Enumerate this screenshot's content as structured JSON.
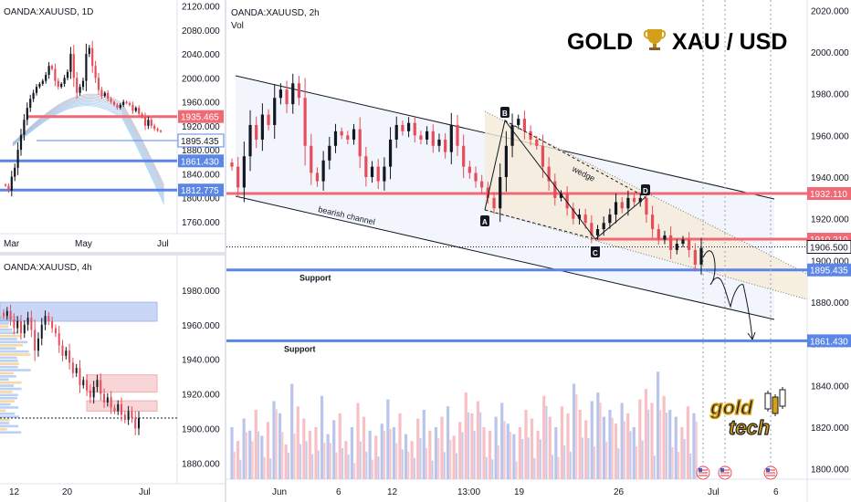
{
  "colors": {
    "up": "#131722",
    "down": "#e74c5a",
    "red_line": "#f06a75",
    "blue_line": "#5b86e5",
    "channel": "#131722",
    "wedge_fill": "#f5ecd8",
    "tag_red": "#f06a75",
    "tag_blue": "#5b86e5",
    "tag_dark": "#131722"
  },
  "icons": [
    "trophy-icon",
    "candlestick-icon",
    "us-flag-icon"
  ],
  "panels": {
    "daily": {
      "symbol": "OANDA:XAUUSD, 1D",
      "price_labels": [
        "2120.000",
        "2080.000",
        "2040.000",
        "2000.000",
        "1960.000",
        "1920.000",
        "1880.000",
        "1840.000",
        "1800.000",
        "1760.000"
      ],
      "time_labels": [
        "Mar",
        "May",
        "Jul"
      ],
      "tags": [
        {
          "label": "1935.465",
          "kind": "red"
        },
        {
          "label": "1895.435",
          "kind": "blue_outline"
        },
        {
          "label": "1861.430",
          "kind": "blue"
        },
        {
          "label": "1812.775",
          "kind": "blue"
        }
      ],
      "chart_data": {
        "type": "line",
        "title": "OANDA:XAUUSD, 1D",
        "y_range": [
          1740,
          2130
        ],
        "x_labels": [
          "Mar",
          "May",
          "Jul"
        ],
        "y": [
          1820,
          1812,
          1835,
          1850,
          1880,
          1905,
          1930,
          1950,
          1965,
          1975,
          1985,
          1990,
          1995,
          2005,
          2020,
          2015,
          1995,
          1985,
          1990,
          2000,
          2010,
          2040,
          2000,
          1975,
          1985,
          1995,
          2040,
          2050,
          2020,
          2000,
          1980,
          1970,
          1975,
          1965,
          1960,
          1955,
          1950,
          1955,
          1960,
          1958,
          1955,
          1945,
          1950,
          1940,
          1935,
          1920,
          1930,
          1920,
          1915,
          1912,
          1910
        ],
        "levels": [
          1935.465,
          1895.435,
          1861.43,
          1812.775
        ]
      }
    },
    "h4": {
      "symbol": "OANDA:XAUUSD, 4h",
      "price_labels": [
        "1980.000",
        "1960.000",
        "1940.000",
        "1920.000",
        "1900.000",
        "1880.000"
      ],
      "time_labels": [
        "12",
        "20",
        "Jul"
      ],
      "chart_data": {
        "type": "line",
        "title": "OANDA:XAUUSD, 4h",
        "y_range": [
          1868,
          2000
        ],
        "x_labels": [
          "12",
          "20",
          "Jul"
        ],
        "y": [
          1965,
          1968,
          1963,
          1958,
          1962,
          1955,
          1960,
          1964,
          1957,
          1945,
          1952,
          1960,
          1965,
          1962,
          1958,
          1955,
          1948,
          1942,
          1945,
          1938,
          1932,
          1935,
          1925,
          1928,
          1922,
          1918,
          1924,
          1928,
          1920,
          1915,
          1918,
          1912,
          1910,
          1914,
          1908,
          1905,
          1910,
          1906,
          1900,
          1906
        ],
        "zones": [
          {
            "from": 1962,
            "to": 1973,
            "color": "blue"
          },
          {
            "from": 1921,
            "to": 1931,
            "color": "red"
          },
          {
            "from": 1910,
            "to": 1916,
            "color": "red"
          }
        ]
      }
    },
    "main": {
      "symbol": "OANDA:XAUUSD, 2h",
      "vol_label": "Vol",
      "brand_left": "GOLD",
      "brand_right": "XAU / USD",
      "price_labels": [
        "2020.000",
        "2000.000",
        "1980.000",
        "1960.000",
        "1940.000",
        "1920.000",
        "1900.000",
        "1880.000",
        "1860.000",
        "1840.000",
        "1820.000",
        "1800.000"
      ],
      "time_labels": [
        "Jun",
        "6",
        "12",
        "13:00",
        "19",
        "26",
        "Jul",
        "6"
      ],
      "tags": [
        {
          "label": "1932.110",
          "kind": "red"
        },
        {
          "label": "1910.210",
          "kind": "red"
        },
        {
          "label": "1906.500",
          "kind": "dark_outline"
        },
        {
          "label": "1895.435",
          "kind": "blue"
        },
        {
          "label": "1861.430",
          "kind": "blue"
        }
      ],
      "annotations": {
        "bearish_channel": "bearish channel",
        "wedge": "wedge",
        "support1": "Support",
        "support2": "Support",
        "points": [
          "A",
          "B",
          "C",
          "D"
        ]
      },
      "logo": {
        "line1": "gold",
        "line2": "tech"
      },
      "chart_data": {
        "type": "line",
        "title": "OANDA:XAUUSD, 2h",
        "y_range": [
          1795,
          2025
        ],
        "x_labels": [
          "Jun",
          "6",
          "12",
          "13:00",
          "19",
          "26",
          "Jul",
          "6"
        ],
        "y": [
          1945,
          1935,
          1950,
          1965,
          1958,
          1970,
          1965,
          1978,
          1982,
          1975,
          1985,
          1978,
          1955,
          1942,
          1938,
          1948,
          1955,
          1962,
          1960,
          1958,
          1963,
          1950,
          1940,
          1945,
          1938,
          1945,
          1958,
          1965,
          1962,
          1966,
          1960,
          1958,
          1962,
          1955,
          1958,
          1952,
          1965,
          1955,
          1945,
          1942,
          1938,
          1935,
          1930,
          1925,
          1940,
          1955,
          1965,
          1968,
          1962,
          1958,
          1955,
          1945,
          1938,
          1930,
          1932,
          1925,
          1920,
          1922,
          1918,
          1912,
          1915,
          1918,
          1922,
          1928,
          1925,
          1930,
          1928,
          1930,
          1922,
          1915,
          1910,
          1912,
          1905,
          1908,
          1910,
          1905,
          1898,
          1906
        ],
        "levels": [
          1932.11,
          1910.21,
          1906.5,
          1895.435,
          1861.43
        ],
        "volume": [
          30,
          22,
          35,
          28,
          40,
          25,
          33,
          45,
          38,
          20,
          55,
          42,
          35,
          28,
          30,
          48,
          26,
          34,
          38,
          22,
          30,
          44,
          36,
          28,
          25,
          32,
          46,
          30,
          38,
          26,
          22,
          35,
          40,
          28,
          30,
          36,
          42,
          25,
          33,
          50,
          38,
          45,
          30,
          28,
          36,
          44,
          32,
          26,
          30,
          40,
          35,
          28,
          48,
          36,
          30,
          42,
          38,
          55,
          40,
          34,
          45,
          50,
          36,
          40,
          32,
          44,
          38,
          30,
          46,
          52,
          44,
          62,
          48,
          40,
          36,
          30,
          42,
          38
        ]
      }
    }
  }
}
